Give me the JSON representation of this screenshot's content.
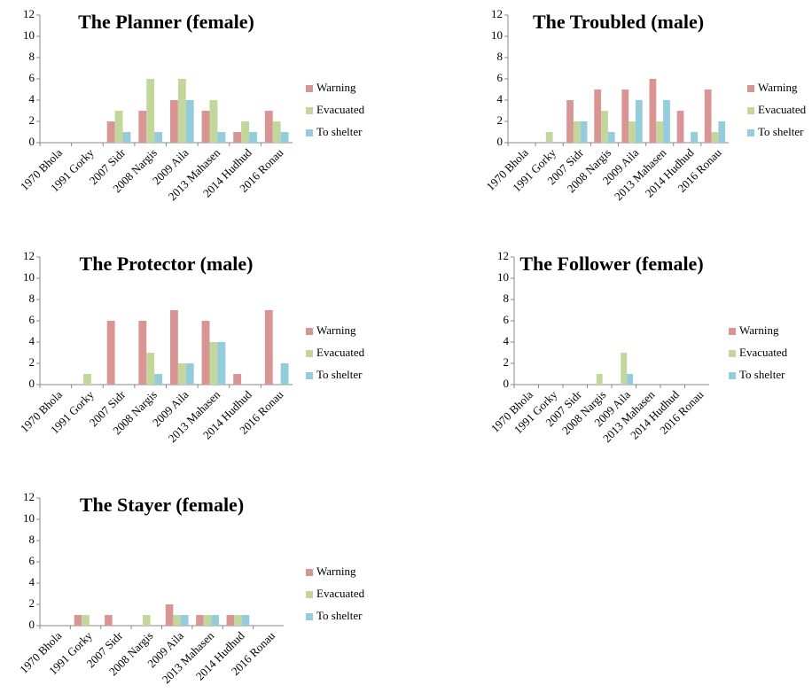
{
  "chart_data": [
    {
      "type": "bar",
      "title": "The Planner (female)",
      "categories": [
        "1970 Bhola",
        "1991 Gorky",
        "2007 Sidr",
        "2008 Nargis",
        "2009 Aila",
        "2013 Mahasen",
        "2014 Hudhud",
        "2016 Ronau"
      ],
      "series": [
        {
          "name": "Warning",
          "color": "#d99594",
          "values": [
            0,
            0,
            2,
            3,
            4,
            3,
            1,
            3
          ]
        },
        {
          "name": "Evacuated",
          "color": "#c3d69b",
          "values": [
            0,
            0,
            3,
            6,
            6,
            4,
            2,
            2
          ]
        },
        {
          "name": "To shelter",
          "color": "#93cddd",
          "values": [
            0,
            0,
            1,
            1,
            4,
            1,
            1,
            1
          ]
        }
      ],
      "ylim": [
        0,
        12
      ],
      "yticks": [
        0,
        2,
        4,
        6,
        8,
        10,
        12
      ],
      "legend": "right"
    },
    {
      "type": "bar",
      "title": "The Troubled (male)",
      "categories": [
        "1970 Bhola",
        "1991 Gorky",
        "2007 Sidr",
        "2008 Nargis",
        "2009 Aila",
        "2013 Mahasen",
        "2014 Hudhud",
        "2016 Ronau"
      ],
      "series": [
        {
          "name": "Warning",
          "color": "#d99594",
          "values": [
            0,
            0,
            4,
            5,
            5,
            6,
            3,
            5
          ]
        },
        {
          "name": "Evacuated",
          "color": "#c3d69b",
          "values": [
            0,
            1,
            2,
            3,
            2,
            2,
            0,
            1
          ]
        },
        {
          "name": "To shelter",
          "color": "#93cddd",
          "values": [
            0,
            0,
            2,
            1,
            4,
            4,
            1,
            2
          ]
        }
      ],
      "ylim": [
        0,
        12
      ],
      "yticks": [
        0,
        2,
        4,
        6,
        8,
        10,
        12
      ],
      "legend": "right"
    },
    {
      "type": "bar",
      "title": "The Protector (male)",
      "categories": [
        "1970 Bhola",
        "1991 Gorky",
        "2007 Sidr",
        "2008 Nargis",
        "2009 Aila",
        "2013 Mahasen",
        "2014 Hudhud",
        "2016 Ronau"
      ],
      "series": [
        {
          "name": "Warning",
          "color": "#d99594",
          "values": [
            0,
            0,
            6,
            6,
            7,
            6,
            1,
            7
          ]
        },
        {
          "name": "Evacuated",
          "color": "#c3d69b",
          "values": [
            0,
            1,
            0,
            3,
            2,
            4,
            0,
            0
          ]
        },
        {
          "name": "To shelter",
          "color": "#93cddd",
          "values": [
            0,
            0,
            0,
            1,
            2,
            4,
            0,
            2
          ]
        }
      ],
      "ylim": [
        0,
        12
      ],
      "yticks": [
        0,
        2,
        4,
        6,
        8,
        10,
        12
      ],
      "legend": "right"
    },
    {
      "type": "bar",
      "title": "The Follower (female)",
      "categories": [
        "1970 Bhola",
        "1991 Gorky",
        "2007 Sidr",
        "2008 Nargis",
        "2009 Aila",
        "2013 Mahasen",
        "2014 Hudhud",
        "2016 Ronau"
      ],
      "series": [
        {
          "name": "Warning",
          "color": "#d99594",
          "values": [
            0,
            0,
            0,
            0,
            0,
            0,
            0,
            0
          ]
        },
        {
          "name": "Evacuated",
          "color": "#c3d69b",
          "values": [
            0,
            0,
            0,
            1,
            3,
            0,
            0,
            0
          ]
        },
        {
          "name": "To shelter",
          "color": "#93cddd",
          "values": [
            0,
            0,
            0,
            0,
            1,
            0,
            0,
            0
          ]
        }
      ],
      "ylim": [
        0,
        12
      ],
      "yticks": [
        0,
        2,
        4,
        6,
        8,
        10,
        12
      ],
      "legend": "right"
    },
    {
      "type": "bar",
      "title": "The Stayer (female)",
      "categories": [
        "1970 Bhola",
        "1991 Gorky",
        "2007 Sidr",
        "2008 Nargis",
        "2009 Aila",
        "2013 Mahasen",
        "2014 Hudhud",
        "2016 Ronau"
      ],
      "series": [
        {
          "name": "Warning",
          "color": "#d99594",
          "values": [
            0,
            1,
            1,
            0,
            2,
            1,
            1,
            0
          ]
        },
        {
          "name": "Evacuated",
          "color": "#c3d69b",
          "values": [
            0,
            1,
            0,
            1,
            1,
            1,
            1,
            0
          ]
        },
        {
          "name": "To shelter",
          "color": "#93cddd",
          "values": [
            0,
            0,
            0,
            0,
            1,
            1,
            1,
            0
          ]
        }
      ],
      "ylim": [
        0,
        12
      ],
      "yticks": [
        0,
        2,
        4,
        6,
        8,
        10,
        12
      ],
      "legend": "right"
    }
  ]
}
